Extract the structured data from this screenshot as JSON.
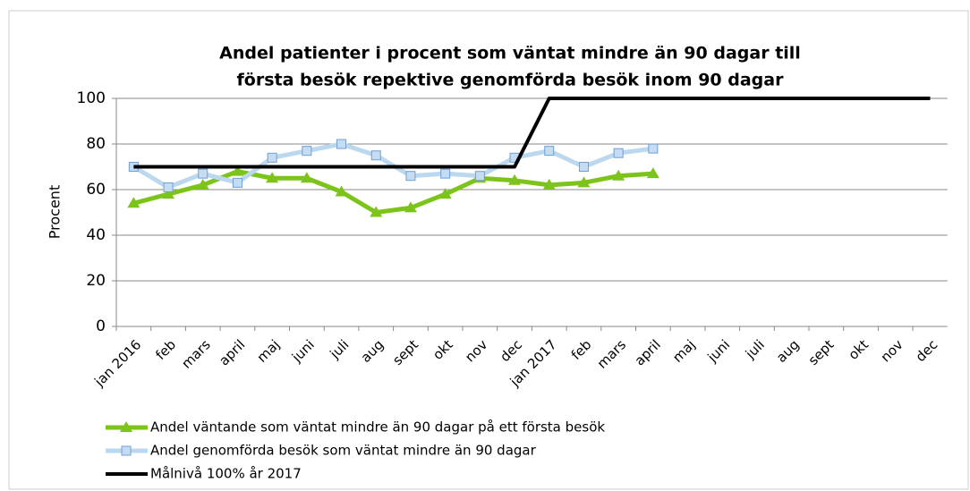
{
  "chart_data": {
    "type": "line",
    "title": [
      "Andel patienter i procent som väntat mindre än 90 dagar till",
      "första besök repektive genomförda besök inom 90 dagar"
    ],
    "y_label": "Procent",
    "categories": [
      "jan 2016",
      "feb",
      "mars",
      "april",
      "maj",
      "juni",
      "juli",
      "aug",
      "sept",
      "okt",
      "nov",
      "dec",
      "jan 2017",
      "feb",
      "mars",
      "april",
      "maj",
      "juni",
      "juli",
      "aug",
      "sept",
      "okt",
      "nov",
      "dec"
    ],
    "series": [
      {
        "name": "Andel väntande som väntat mindre än 90 dagar på ett första besök",
        "color": "#7dc41a",
        "marker": "triangle",
        "values": [
          54,
          58,
          62,
          68,
          65,
          65,
          59,
          50,
          52,
          58,
          65,
          64,
          62,
          63,
          66,
          67,
          null,
          null,
          null,
          null,
          null,
          null,
          null,
          null
        ]
      },
      {
        "name": "Andel genomförda besök som väntat mindre än 90 dagar",
        "color": "#bcd8ef",
        "marker": "square",
        "values": [
          70,
          61,
          67,
          63,
          74,
          77,
          80,
          75,
          66,
          67,
          66,
          74,
          77,
          70,
          76,
          78,
          null,
          null,
          null,
          null,
          null,
          null,
          null,
          null
        ]
      },
      {
        "name": "Målnivå 100% år 2017",
        "color": "#000000",
        "marker": "none",
        "values": [
          70,
          70,
          70,
          70,
          70,
          70,
          70,
          70,
          70,
          70,
          70,
          70,
          100,
          100,
          100,
          100,
          100,
          100,
          100,
          100,
          100,
          100,
          100,
          100
        ]
      }
    ],
    "ylim": [
      0,
      100
    ],
    "yticks": [
      0,
      20,
      40,
      60,
      80,
      100
    ],
    "grid": true
  }
}
